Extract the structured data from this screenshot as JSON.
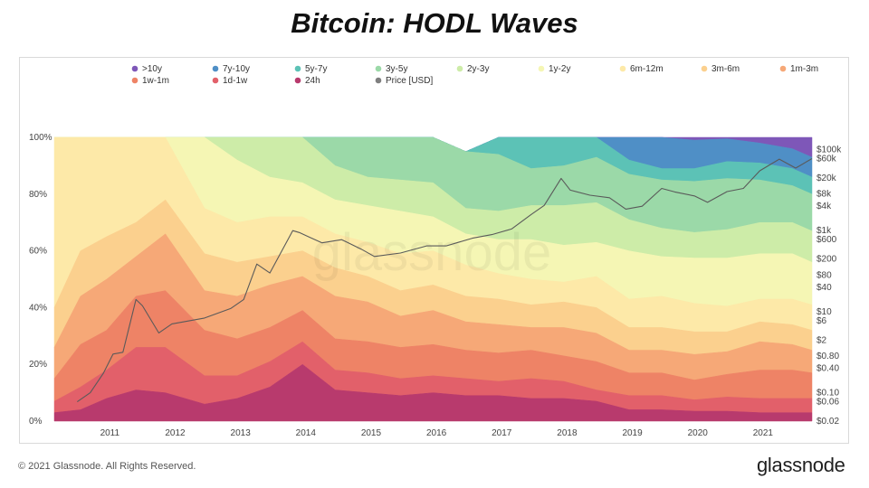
{
  "page": {
    "title": "Bitcoin: HODL Waves",
    "footer_copyright": "© 2021 Glassnode. All Rights Reserved.",
    "footer_logo": "glassnode",
    "watermark": "glassnode"
  },
  "chart_data": {
    "type": "area",
    "stacked": true,
    "x_range": [
      2010.2,
      2021.8
    ],
    "x_ticks": [
      "2011",
      "2012",
      "2013",
      "2014",
      "2015",
      "2016",
      "2017",
      "2018",
      "2019",
      "2020",
      "2021"
    ],
    "y_left": {
      "ylim": [
        0,
        100
      ],
      "ticks": [
        0,
        20,
        40,
        60,
        80,
        100
      ],
      "tick_labels": [
        "0%",
        "20%",
        "40%",
        "60%",
        "80%",
        "100%"
      ]
    },
    "y_right": {
      "scale": "log",
      "ylim": [
        0.02,
        200000
      ],
      "tick_values": [
        0.02,
        0.06,
        0.1,
        0.4,
        0.8,
        2,
        6,
        10,
        40,
        80,
        200,
        600,
        1000,
        4000,
        8000,
        20000,
        60000,
        100000
      ],
      "tick_labels": [
        "$0.02",
        "$0.06",
        "$0.10",
        "$0.40",
        "$0.80",
        "$2",
        "$6",
        "$10",
        "$40",
        "$80",
        "$200",
        "$600",
        "$1k",
        "$4k",
        "$8k",
        "$20k",
        "$60k",
        "$100k"
      ]
    },
    "grid": false,
    "legend_position": "top",
    "x": [
      2010.2,
      2010.6,
      2011.0,
      2011.45,
      2011.9,
      2012.5,
      2013.0,
      2013.5,
      2014.0,
      2014.5,
      2015.0,
      2015.5,
      2016.0,
      2016.5,
      2017.0,
      2017.5,
      2018.0,
      2018.5,
      2019.0,
      2019.5,
      2020.0,
      2020.5,
      2021.0,
      2021.5,
      2021.8
    ],
    "series": [
      {
        "name": ">10y",
        "color": "#7e57b8",
        "values": [
          0,
          0,
          0,
          0,
          0,
          0,
          0,
          0,
          0,
          0,
          0,
          0,
          0,
          0,
          0,
          0,
          0,
          0,
          0,
          0.5,
          2,
          4.5,
          7,
          9,
          10
        ]
      },
      {
        "name": "7y-10y",
        "color": "#4f8fc6",
        "values": [
          0,
          0,
          0,
          0,
          0,
          0,
          0,
          0,
          0,
          0,
          0,
          0,
          0,
          0,
          0,
          0,
          0,
          0,
          8,
          11,
          10,
          8,
          7,
          7,
          7
        ]
      },
      {
        "name": "5y-7y",
        "color": "#5cc2b6",
        "values": [
          0,
          0,
          0,
          0,
          0,
          0,
          0,
          0,
          0,
          0,
          0,
          0,
          0,
          0,
          6,
          11,
          10,
          7,
          5,
          4,
          4.5,
          6,
          6,
          6,
          6
        ]
      },
      {
        "name": "3y-5y",
        "color": "#9bd9a8",
        "values": [
          0,
          0,
          0,
          0,
          0,
          0,
          0,
          0,
          0,
          10,
          14,
          15,
          16,
          20,
          20,
          13,
          14,
          16,
          16,
          17,
          18,
          18,
          15,
          13,
          13
        ]
      },
      {
        "name": "2y-3y",
        "color": "#cdeca8",
        "values": [
          0,
          0,
          0,
          0,
          0,
          0,
          8,
          14,
          16,
          12,
          10,
          11,
          12,
          9,
          10,
          12,
          14,
          14,
          11,
          10,
          9,
          10,
          11,
          11,
          11
        ]
      },
      {
        "name": "1y-2y",
        "color": "#f5f6b4",
        "values": [
          0,
          0,
          0,
          0,
          0,
          25,
          22,
          14,
          12,
          12,
          13,
          15,
          12,
          11,
          12,
          14,
          13,
          12,
          17,
          14,
          16,
          17,
          16,
          16,
          15
        ]
      },
      {
        "name": "6m-12m",
        "color": "#fde9a8",
        "values": [
          60,
          40,
          35,
          30,
          22,
          16,
          14,
          14,
          12,
          12,
          12,
          13,
          12,
          11,
          9,
          9,
          7,
          11,
          10,
          11,
          10,
          9,
          8,
          9,
          9
        ]
      },
      {
        "name": "3m-6m",
        "color": "#fbd08e",
        "values": [
          14,
          16,
          15,
          12,
          12,
          13,
          12,
          10,
          9,
          10,
          9,
          9,
          9,
          9,
          9,
          8,
          9,
          9,
          8,
          8,
          8,
          7,
          7,
          7,
          7
        ]
      },
      {
        "name": "1m-3m",
        "color": "#f6a877",
        "values": [
          11,
          17,
          18,
          14,
          20,
          14,
          15,
          15,
          12,
          15,
          14,
          11,
          12,
          10,
          10,
          8,
          10,
          10,
          8,
          8,
          9,
          8,
          10,
          9,
          8
        ]
      },
      {
        "name": "1w-1m",
        "color": "#ee8366",
        "values": [
          8,
          15,
          14,
          18,
          20,
          16,
          13,
          12,
          11,
          11,
          11,
          11,
          11,
          10,
          10,
          10,
          9,
          10,
          8,
          8,
          7,
          8,
          10,
          10,
          9
        ]
      },
      {
        "name": "1d-1w",
        "color": "#e2606a",
        "values": [
          4,
          8,
          10,
          15,
          16,
          10,
          8,
          9,
          8,
          7,
          7,
          6,
          6,
          6,
          5,
          7,
          6,
          4,
          5,
          5,
          4,
          5,
          5,
          5,
          5
        ]
      },
      {
        "name": "24h",
        "color": "#b83a6d",
        "values": [
          3,
          4,
          8,
          11,
          10,
          6,
          8,
          12,
          20,
          11,
          10,
          9,
          10,
          9,
          9,
          8,
          8,
          7,
          4,
          4,
          3.5,
          3.5,
          3,
          3,
          3
        ]
      }
    ],
    "price_series": {
      "name": "Price [USD]",
      "color": "#7f7f7f",
      "x": [
        2010.55,
        2010.75,
        2010.95,
        2011.1,
        2011.25,
        2011.45,
        2011.55,
        2011.8,
        2012.0,
        2012.5,
        2012.9,
        2013.1,
        2013.3,
        2013.5,
        2013.85,
        2013.95,
        2014.1,
        2014.3,
        2014.6,
        2014.9,
        2015.1,
        2015.5,
        2015.9,
        2016.2,
        2016.6,
        2016.9,
        2017.2,
        2017.5,
        2017.7,
        2017.96,
        2018.1,
        2018.4,
        2018.7,
        2018.95,
        2019.2,
        2019.5,
        2019.7,
        2020.0,
        2020.2,
        2020.5,
        2020.75,
        2021.0,
        2021.3,
        2021.55,
        2021.8
      ],
      "y": [
        0.06,
        0.1,
        0.3,
        0.9,
        1,
        20,
        14,
        3,
        5,
        7,
        12,
        20,
        150,
        90,
        1000,
        900,
        700,
        500,
        600,
        350,
        230,
        280,
        420,
        420,
        650,
        800,
        1100,
        2500,
        4200,
        19500,
        10000,
        7500,
        6500,
        3400,
        4000,
        11000,
        9000,
        7200,
        5000,
        9200,
        11000,
        30000,
        58000,
        35000,
        60000
      ]
    }
  }
}
